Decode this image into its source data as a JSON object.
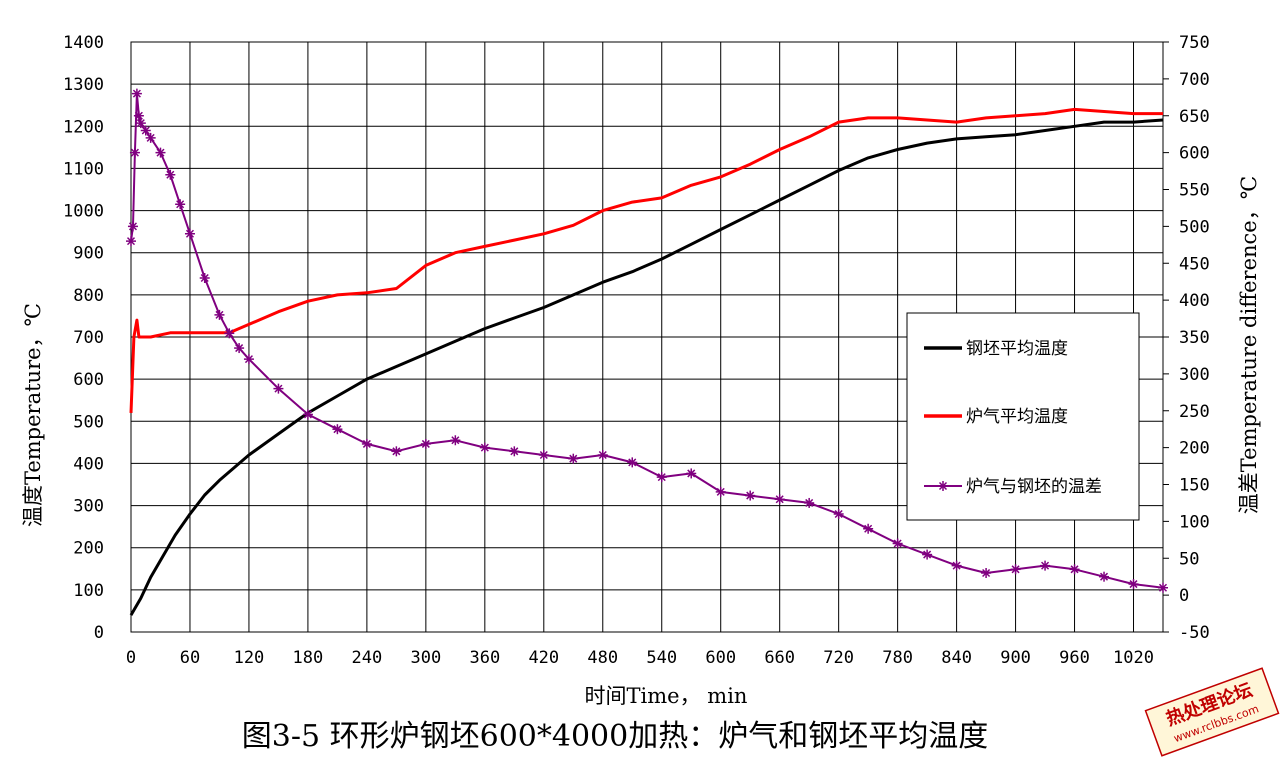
{
  "caption": "图3-5 环形炉钢坯600*4000加热：炉气和钢坯平均温度",
  "watermark": {
    "title": "热处理论坛",
    "url": "www.rclbbs.com"
  },
  "chart_data": {
    "type": "line",
    "title": "",
    "xlabel": "时间Time，  min",
    "ylabel": "温度Temperature，℃",
    "y2label": "温差Temperature difference，℃",
    "xlim": [
      0,
      1050
    ],
    "ylim": [
      0,
      1400
    ],
    "y2lim": [
      -50,
      750
    ],
    "xticks": [
      0,
      60,
      120,
      180,
      240,
      300,
      360,
      420,
      480,
      540,
      600,
      660,
      720,
      780,
      840,
      900,
      960,
      1020
    ],
    "yticks": [
      0,
      100,
      200,
      300,
      400,
      500,
      600,
      700,
      800,
      900,
      1000,
      1100,
      1200,
      1300,
      1400
    ],
    "y2ticks": [
      -50,
      0,
      50,
      100,
      150,
      200,
      250,
      300,
      350,
      400,
      450,
      500,
      550,
      600,
      650,
      700,
      750
    ],
    "grid": true,
    "legend_position": "right",
    "series": [
      {
        "name": "钢坯平均温度",
        "axis": "left",
        "color": "#000000",
        "marker": "none",
        "x": [
          0,
          10,
          20,
          30,
          45,
          60,
          75,
          90,
          105,
          120,
          150,
          180,
          210,
          240,
          270,
          300,
          330,
          360,
          390,
          420,
          450,
          480,
          510,
          540,
          570,
          600,
          630,
          660,
          690,
          720,
          750,
          780,
          810,
          840,
          870,
          900,
          930,
          960,
          990,
          1020,
          1050
        ],
        "y": [
          40,
          80,
          130,
          170,
          230,
          280,
          325,
          360,
          390,
          420,
          470,
          520,
          560,
          600,
          630,
          660,
          690,
          720,
          745,
          770,
          800,
          830,
          855,
          885,
          920,
          955,
          990,
          1025,
          1060,
          1095,
          1125,
          1145,
          1160,
          1170,
          1175,
          1180,
          1190,
          1200,
          1210,
          1210,
          1215
        ]
      },
      {
        "name": "炉气平均温度",
        "axis": "left",
        "color": "#ff0000",
        "marker": "none",
        "x": [
          0,
          3,
          6,
          8,
          12,
          20,
          40,
          60,
          90,
          100,
          120,
          150,
          180,
          210,
          240,
          270,
          300,
          330,
          360,
          390,
          420,
          450,
          480,
          510,
          540,
          570,
          600,
          630,
          660,
          690,
          720,
          750,
          780,
          810,
          840,
          870,
          900,
          930,
          960,
          990,
          1020,
          1050
        ],
        "y": [
          520,
          700,
          740,
          700,
          700,
          700,
          710,
          710,
          710,
          710,
          730,
          760,
          785,
          800,
          805,
          815,
          870,
          900,
          915,
          930,
          945,
          965,
          1000,
          1020,
          1030,
          1060,
          1080,
          1110,
          1145,
          1175,
          1210,
          1220,
          1220,
          1215,
          1210,
          1220,
          1225,
          1230,
          1240,
          1235,
          1230,
          1230
        ]
      },
      {
        "name": "炉气与钢坯的温差",
        "axis": "right",
        "color": "#800080",
        "marker": "asterisk",
        "x": [
          0,
          2,
          4,
          6,
          8,
          10,
          15,
          20,
          30,
          40,
          50,
          60,
          75,
          90,
          100,
          110,
          120,
          150,
          180,
          210,
          240,
          270,
          300,
          330,
          360,
          390,
          420,
          450,
          480,
          510,
          540,
          570,
          600,
          630,
          660,
          690,
          720,
          750,
          780,
          810,
          840,
          870,
          900,
          930,
          960,
          990,
          1020,
          1050
        ],
        "y": [
          480,
          500,
          600,
          680,
          650,
          640,
          630,
          620,
          600,
          570,
          530,
          490,
          430,
          380,
          355,
          335,
          320,
          280,
          245,
          225,
          205,
          195,
          205,
          210,
          200,
          195,
          190,
          185,
          190,
          180,
          160,
          165,
          140,
          135,
          130,
          125,
          110,
          90,
          70,
          55,
          40,
          30,
          35,
          40,
          35,
          25,
          15,
          10
        ]
      }
    ]
  }
}
